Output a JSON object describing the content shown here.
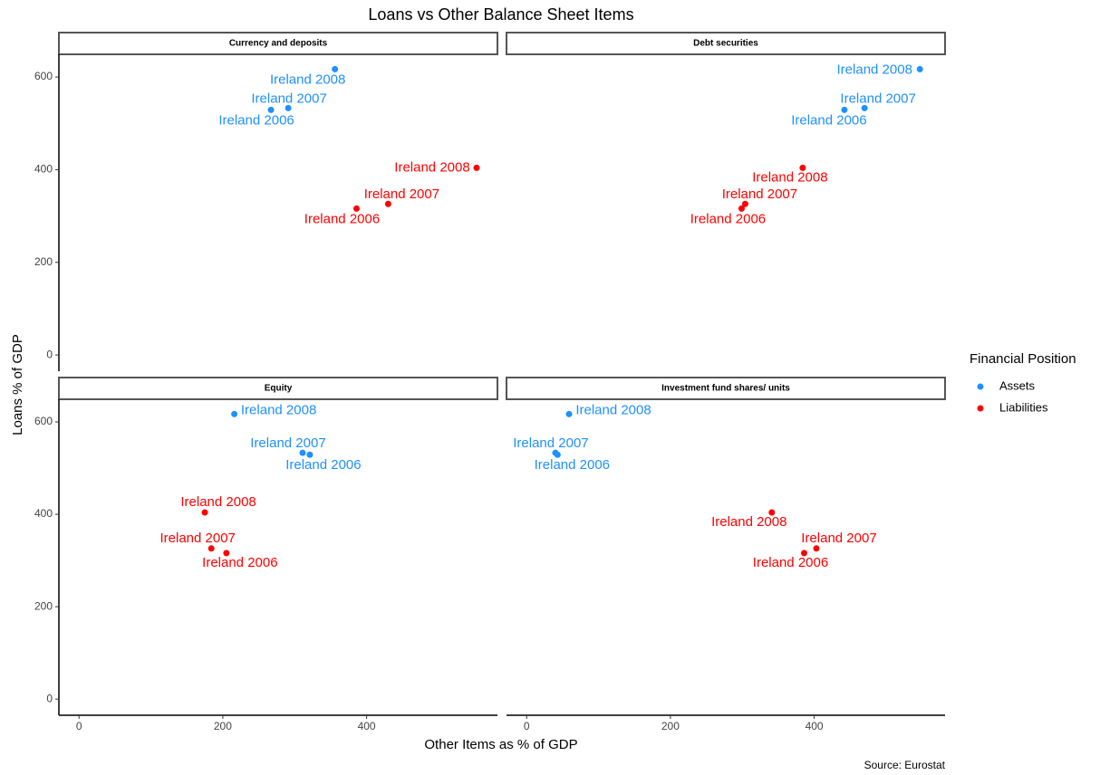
{
  "chart_data": {
    "type": "scatter",
    "title": "Loans vs Other Balance Sheet Items",
    "x_label": "Other Items as % of GDP",
    "y_label": "Loans % of GDP",
    "source": "Source: Eurostat",
    "legend_title": "Financial Position",
    "legend": "right",
    "grid": false,
    "xlim": [
      -28,
      582
    ],
    "ylim": [
      -35,
      649
    ],
    "xticks": [
      0,
      200,
      400
    ],
    "yticks": [
      0,
      200,
      400,
      600
    ],
    "series": [
      {
        "name": "Assets",
        "color": "#1e90ff"
      },
      {
        "name": "Liabilities",
        "color": "#ff0000"
      }
    ],
    "panels": [
      {
        "title": "Currency and deposits",
        "series": [
          {
            "x": [
              267,
              291,
              356
            ],
            "values": [
              529,
              533,
              617
            ],
            "labels": [
              "Ireland 2006",
              "Ireland 2007",
              "Ireland 2008"
            ]
          },
          {
            "x": [
              386,
              430,
              553
            ],
            "values": [
              316,
              326,
              404
            ],
            "labels": [
              "Ireland 2006",
              "Ireland 2007",
              "Ireland 2008"
            ]
          }
        ]
      },
      {
        "title": "Debt securities",
        "series": [
          {
            "x": [
              442,
              470,
              547
            ],
            "values": [
              529,
              533,
              617
            ],
            "labels": [
              "Ireland 2006",
              "Ireland 2007",
              "Ireland 2008"
            ]
          },
          {
            "x": [
              299,
              304,
              384
            ],
            "values": [
              316,
              326,
              404
            ],
            "labels": [
              "Ireland 2006",
              "Ireland 2007",
              "Ireland 2008"
            ]
          }
        ]
      },
      {
        "title": "Equity",
        "series": [
          {
            "x": [
              321,
              311,
              216
            ],
            "values": [
              529,
              533,
              617
            ],
            "labels": [
              "Ireland 2006",
              "Ireland 2007",
              "Ireland 2008"
            ]
          },
          {
            "x": [
              205,
              184,
              175
            ],
            "values": [
              316,
              326,
              404
            ],
            "labels": [
              "Ireland 2006",
              "Ireland 2007",
              "Ireland 2008"
            ]
          }
        ]
      },
      {
        "title": "Investment fund shares/ units",
        "series": [
          {
            "x": [
              43,
              40,
              59
            ],
            "values": [
              529,
              533,
              617
            ],
            "labels": [
              "Ireland 2006",
              "Ireland 2007",
              "Ireland 2008"
            ]
          },
          {
            "x": [
              386,
              403,
              341
            ],
            "values": [
              316,
              326,
              404
            ],
            "labels": [
              "Ireland 2006",
              "Ireland 2007",
              "Ireland 2008"
            ]
          }
        ]
      }
    ]
  }
}
